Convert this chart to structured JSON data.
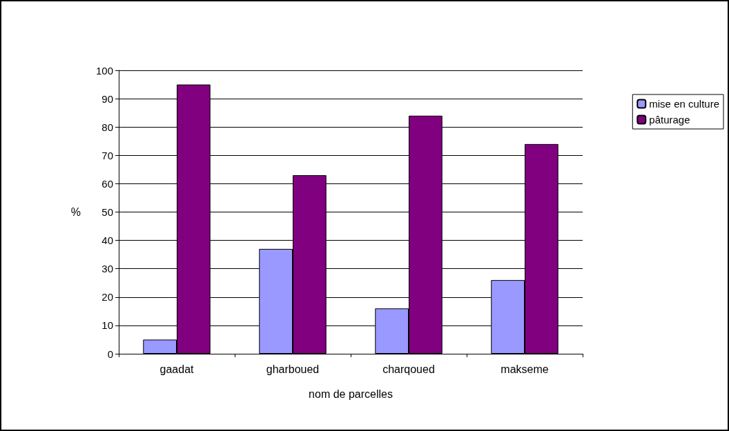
{
  "chart_data": {
    "type": "bar",
    "xlabel": "nom de parcelles",
    "ylabel": "%",
    "categories": [
      "gaadat",
      "gharboued",
      "charqoued",
      "makseme"
    ],
    "series": [
      {
        "name": "mise en culture",
        "color": "#9999ff",
        "values": [
          5,
          37,
          16,
          26
        ]
      },
      {
        "name": "pâturage",
        "color": "#800080",
        "values": [
          95,
          63,
          84,
          74
        ]
      }
    ],
    "ylim": [
      0,
      100
    ],
    "yticks": [
      0,
      10,
      20,
      30,
      40,
      50,
      60,
      70,
      80,
      90,
      100
    ],
    "grid": "y",
    "legend": "right"
  }
}
